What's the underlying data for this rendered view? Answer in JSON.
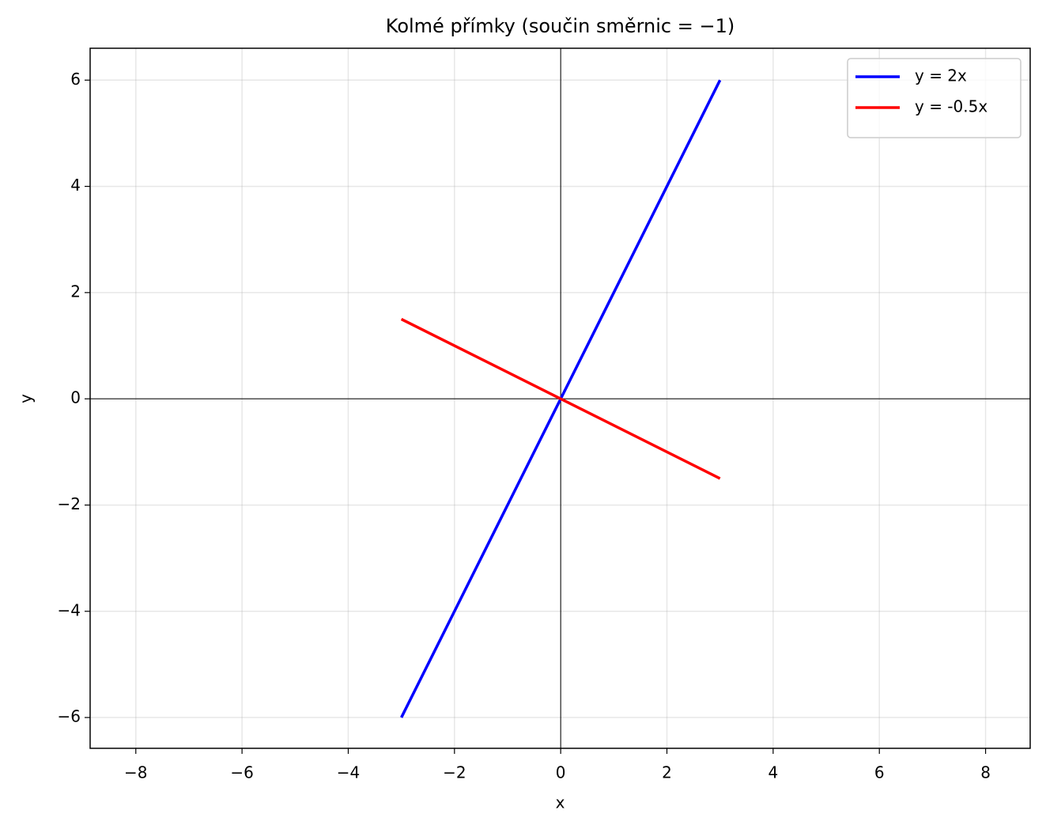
{
  "chart_data": {
    "type": "line",
    "title": "Kolmé přímky (součin směrnic = −1)",
    "xlabel": "x",
    "ylabel": "y",
    "x": [
      -3,
      3
    ],
    "series": [
      {
        "name": "y = 2x",
        "color": "#0000ff",
        "values": [
          -6,
          6
        ]
      },
      {
        "name": "y = -0.5x",
        "color": "#ff0000",
        "values": [
          1.5,
          -1.5
        ]
      }
    ],
    "xlim": [
      -8.86,
      8.84
    ],
    "ylim": [
      -6.58,
      6.6
    ],
    "xticks": [
      {
        "value": -8,
        "label": "−8"
      },
      {
        "value": -6,
        "label": "−6"
      },
      {
        "value": -4,
        "label": "−4"
      },
      {
        "value": -2,
        "label": "−2"
      },
      0,
      2,
      4,
      6,
      8
    ],
    "yticks": [
      {
        "value": -6,
        "label": "−6"
      },
      {
        "value": -4,
        "label": "−4"
      },
      {
        "value": -2,
        "label": "−2"
      },
      0,
      2,
      4,
      6
    ],
    "grid": true,
    "zero_lines": true,
    "legend": "upper right"
  }
}
